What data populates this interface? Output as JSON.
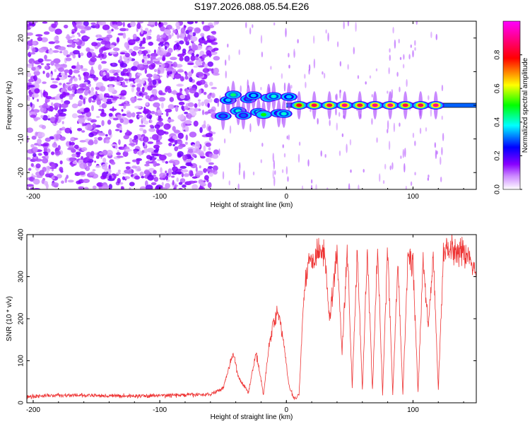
{
  "title": "S197.2026.088.05.54.E26",
  "chart_data": [
    {
      "type": "heatmap",
      "title": "S197.2026.088.05.54.E26",
      "xlabel": "Height of straight line (km)",
      "ylabel": "Frequency (Hz)",
      "xlim": [
        -205,
        150
      ],
      "ylim": [
        -25,
        25
      ],
      "xticks": [
        -200,
        -100,
        0,
        100
      ],
      "yticks": [
        -20,
        -10,
        0,
        10,
        20
      ],
      "colorbar": {
        "label": "Normalized spectral amplitude",
        "range": [
          0.0,
          1.0
        ],
        "ticks": [
          "0.0",
          "0.2",
          "0.4",
          "0.6",
          "0.8"
        ],
        "colormap": [
          "#ffffff",
          "#9b00ff",
          "#0000ff",
          "#00ffff",
          "#00ff00",
          "#ffff00",
          "#ff0000",
          "#ff00ff"
        ]
      },
      "signal_track": {
        "frequency_hz": 0,
        "onset_height_km": -62,
        "pulse_heights_km": [
          -50,
          -46,
          -42,
          -38,
          -34,
          -30,
          -26,
          -22,
          -18,
          -14,
          -10,
          -6,
          -2,
          2,
          10,
          22,
          34,
          46,
          58,
          70,
          82,
          94,
          106,
          118
        ],
        "pulse_amplitudes": [
          0.3,
          0.35,
          0.45,
          0.4,
          0.3,
          0.3,
          0.35,
          0.4,
          0.5,
          0.45,
          0.4,
          0.35,
          0.4,
          0.35,
          0.8,
          0.85,
          0.85,
          0.9,
          0.85,
          0.9,
          0.9,
          0.85,
          0.85,
          0.9
        ],
        "noise_region_km": [
          -205,
          -55
        ]
      }
    },
    {
      "type": "line",
      "xlabel": "Height of straight line (km)",
      "ylabel": "SNR (10 * v/v)",
      "xlim": [
        -205,
        150
      ],
      "ylim": [
        0,
        400
      ],
      "xticks": [
        -200,
        -100,
        0,
        100
      ],
      "yticks": [
        0,
        100,
        200,
        300,
        400
      ],
      "series": [
        {
          "name": "SNR",
          "color": "#ee3333",
          "x": [
            -205,
            -180,
            -150,
            -120,
            -90,
            -60,
            -50,
            -42,
            -38,
            -30,
            -24,
            -18,
            -14,
            -10,
            -6,
            -2,
            2,
            6,
            10,
            14,
            17,
            20,
            25,
            30,
            34,
            40,
            44,
            48,
            52,
            56,
            60,
            64,
            68,
            72,
            76,
            80,
            84,
            88,
            92,
            96,
            100,
            104,
            108,
            112,
            116,
            120,
            124,
            130,
            140,
            150
          ],
          "y": [
            15,
            18,
            17,
            16,
            18,
            20,
            35,
            120,
            60,
            25,
            120,
            20,
            130,
            200,
            210,
            140,
            40,
            10,
            20,
            270,
            330,
            340,
            365,
            360,
            200,
            360,
            120,
            370,
            40,
            370,
            30,
            360,
            30,
            360,
            20,
            370,
            20,
            330,
            20,
            350,
            330,
            25,
            340,
            180,
            350,
            30,
            360,
            370,
            360,
            320
          ]
        }
      ]
    }
  ]
}
